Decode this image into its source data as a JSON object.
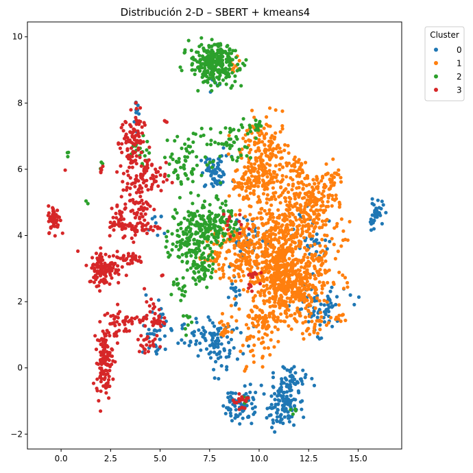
{
  "chart_data": {
    "type": "scatter",
    "title": "Distribución 2-D – SBERT + kmeans4",
    "xlabel": "",
    "ylabel": "",
    "xlim": [
      -1.7,
      17.2
    ],
    "ylim": [
      -2.45,
      10.45
    ],
    "x_ticks": [
      0.0,
      2.5,
      5.0,
      7.5,
      10.0,
      12.5,
      15.0
    ],
    "x_tick_labels": [
      "0.0",
      "2.5",
      "5.0",
      "7.5",
      "10.0",
      "12.5",
      "15.0"
    ],
    "y_ticks": [
      -2,
      0,
      2,
      4,
      6,
      8,
      10
    ],
    "y_tick_labels": [
      "−2",
      "0",
      "2",
      "4",
      "6",
      "8",
      "10"
    ],
    "grid": false,
    "legend": {
      "title": "Cluster",
      "placement": "outside-top-right"
    },
    "series": [
      {
        "name": "0",
        "color": "#1f77b4",
        "clusters": [
          {
            "cx": 7.8,
            "cy": 5.9,
            "sx": 0.4,
            "sy": 0.25,
            "n": 60
          },
          {
            "cx": 7.6,
            "cy": 0.9,
            "sx": 0.8,
            "sy": 0.3,
            "n": 80
          },
          {
            "cx": 8.0,
            "cy": 0.5,
            "sx": 0.25,
            "sy": 0.4,
            "n": 25
          },
          {
            "cx": 9.0,
            "cy": -1.1,
            "sx": 0.4,
            "sy": 0.3,
            "n": 70
          },
          {
            "cx": 11.2,
            "cy": -1.1,
            "sx": 0.4,
            "sy": 0.35,
            "n": 120
          },
          {
            "cx": 11.7,
            "cy": -0.3,
            "sx": 0.4,
            "sy": 0.2,
            "n": 35
          },
          {
            "cx": 13.0,
            "cy": 1.8,
            "sx": 0.7,
            "sy": 0.35,
            "n": 70
          },
          {
            "cx": 15.9,
            "cy": 4.65,
            "sx": 0.2,
            "sy": 0.2,
            "n": 40
          },
          {
            "cx": 4.8,
            "cy": 1.1,
            "sx": 0.3,
            "sy": 0.5,
            "n": 35
          },
          {
            "cx": 9.6,
            "cy": 3.9,
            "sx": 0.5,
            "sy": 0.3,
            "n": 40
          },
          {
            "cx": 12.8,
            "cy": 3.8,
            "sx": 0.5,
            "sy": 0.5,
            "n": 35
          },
          {
            "cx": 3.7,
            "cy": 7.6,
            "sx": 0.15,
            "sy": 0.2,
            "n": 10
          },
          {
            "cx": 8.8,
            "cy": 2.2,
            "sx": 0.2,
            "sy": 0.3,
            "n": 15
          },
          {
            "cx": 7.7,
            "cy": 8.6,
            "sx": 0.15,
            "sy": 0.15,
            "n": 8
          },
          {
            "cx": 4.8,
            "cy": 4.3,
            "sx": 0.2,
            "sy": 0.2,
            "n": 8
          }
        ]
      },
      {
        "name": "1",
        "color": "#ff7f0e",
        "clusters": [
          {
            "cx": 10.9,
            "cy": 3.5,
            "sx": 0.9,
            "sy": 0.8,
            "n": 500
          },
          {
            "cx": 11.6,
            "cy": 2.4,
            "sx": 0.8,
            "sy": 0.5,
            "n": 350
          },
          {
            "cx": 10.3,
            "cy": 6.3,
            "sx": 0.6,
            "sy": 0.6,
            "n": 220
          },
          {
            "cx": 12.4,
            "cy": 5.0,
            "sx": 0.8,
            "sy": 0.5,
            "n": 220
          },
          {
            "cx": 9.2,
            "cy": 5.6,
            "sx": 0.4,
            "sy": 0.3,
            "n": 50
          },
          {
            "cx": 8.9,
            "cy": 3.5,
            "sx": 0.5,
            "sy": 0.5,
            "n": 100
          },
          {
            "cx": 10.3,
            "cy": 1.4,
            "sx": 0.4,
            "sy": 0.4,
            "n": 60
          },
          {
            "cx": 9.7,
            "cy": 0.5,
            "sx": 0.3,
            "sy": 0.4,
            "n": 25
          },
          {
            "cx": 13.3,
            "cy": 3.3,
            "sx": 0.5,
            "sy": 0.5,
            "n": 60
          },
          {
            "cx": 13.6,
            "cy": 5.6,
            "sx": 0.3,
            "sy": 0.3,
            "n": 40
          },
          {
            "cx": 8.3,
            "cy": 1.2,
            "sx": 0.2,
            "sy": 0.25,
            "n": 20
          },
          {
            "cx": 14.1,
            "cy": 1.5,
            "sx": 0.2,
            "sy": 0.1,
            "n": 10
          },
          {
            "cx": 11.9,
            "cy": 6.1,
            "sx": 0.2,
            "sy": 0.15,
            "n": 20
          },
          {
            "cx": 8.7,
            "cy": 9.1,
            "sx": 0.15,
            "sy": 0.2,
            "n": 10
          },
          {
            "cx": 7.7,
            "cy": 3.4,
            "sx": 0.4,
            "sy": 0.3,
            "n": 35
          },
          {
            "cx": 12.7,
            "cy": 1.2,
            "sx": 0.3,
            "sy": 0.2,
            "n": 20
          }
        ]
      },
      {
        "name": "2",
        "color": "#2ca02c",
        "clusters": [
          {
            "cx": 7.7,
            "cy": 9.2,
            "sx": 0.6,
            "sy": 0.3,
            "n": 280
          },
          {
            "cx": 6.7,
            "cy": 4.0,
            "sx": 0.6,
            "sy": 0.5,
            "n": 180
          },
          {
            "cx": 7.9,
            "cy": 4.4,
            "sx": 0.5,
            "sy": 0.3,
            "n": 100
          },
          {
            "cx": 6.4,
            "cy": 6.2,
            "sx": 0.7,
            "sy": 0.35,
            "n": 60
          },
          {
            "cx": 8.6,
            "cy": 6.8,
            "sx": 0.5,
            "sy": 0.35,
            "n": 40
          },
          {
            "cx": 9.9,
            "cy": 7.3,
            "sx": 0.2,
            "sy": 0.15,
            "n": 15
          },
          {
            "cx": 7.2,
            "cy": 2.9,
            "sx": 0.3,
            "sy": 0.2,
            "n": 40
          },
          {
            "cx": 6.0,
            "cy": 2.4,
            "sx": 0.2,
            "sy": 0.2,
            "n": 15
          },
          {
            "cx": 6.4,
            "cy": 1.3,
            "sx": 0.2,
            "sy": 0.15,
            "n": 8
          },
          {
            "cx": 7.3,
            "cy": 7.0,
            "sx": 0.4,
            "sy": 0.2,
            "n": 10
          },
          {
            "cx": 4.0,
            "cy": 6.5,
            "sx": 0.3,
            "sy": 0.3,
            "n": 15
          },
          {
            "cx": 0.3,
            "cy": 6.4,
            "sx": 0.05,
            "sy": 0.05,
            "n": 3
          },
          {
            "cx": 2.0,
            "cy": 6.1,
            "sx": 0.1,
            "sy": 0.1,
            "n": 3
          },
          {
            "cx": 9.3,
            "cy": -1.0,
            "sx": 0.1,
            "sy": 0.1,
            "n": 5
          },
          {
            "cx": 11.8,
            "cy": -1.2,
            "sx": 0.1,
            "sy": 0.1,
            "n": 4
          },
          {
            "cx": 1.3,
            "cy": 5.0,
            "sx": 0.05,
            "sy": 0.05,
            "n": 2
          }
        ]
      },
      {
        "name": "3",
        "color": "#d62728",
        "clusters": [
          {
            "cx": 3.6,
            "cy": 6.8,
            "sx": 0.3,
            "sy": 0.5,
            "n": 100
          },
          {
            "cx": 4.3,
            "cy": 5.7,
            "sx": 0.5,
            "sy": 0.25,
            "n": 60
          },
          {
            "cx": 3.8,
            "cy": 5.0,
            "sx": 0.4,
            "sy": 0.5,
            "n": 70
          },
          {
            "cx": 4.0,
            "cy": 4.25,
            "sx": 0.5,
            "sy": 0.1,
            "n": 40
          },
          {
            "cx": 2.8,
            "cy": 4.5,
            "sx": 0.3,
            "sy": 0.3,
            "n": 30
          },
          {
            "cx": -0.35,
            "cy": 4.5,
            "sx": 0.15,
            "sy": 0.2,
            "n": 55
          },
          {
            "cx": 2.2,
            "cy": 3.0,
            "sx": 0.4,
            "sy": 0.25,
            "n": 110
          },
          {
            "cx": 3.4,
            "cy": 3.3,
            "sx": 0.4,
            "sy": 0.1,
            "n": 30
          },
          {
            "cx": 2.2,
            "cy": 0.2,
            "sx": 0.2,
            "sy": 0.5,
            "n": 120
          },
          {
            "cx": 2.7,
            "cy": 1.3,
            "sx": 0.3,
            "sy": 0.3,
            "n": 30
          },
          {
            "cx": 3.5,
            "cy": 1.45,
            "sx": 0.35,
            "sy": 0.05,
            "n": 20
          },
          {
            "cx": 4.7,
            "cy": 1.5,
            "sx": 0.25,
            "sy": 0.25,
            "n": 35
          },
          {
            "cx": 4.3,
            "cy": 0.7,
            "sx": 0.25,
            "sy": 0.15,
            "n": 20
          },
          {
            "cx": 2.0,
            "cy": 6.0,
            "sx": 0.1,
            "sy": 0.1,
            "n": 5
          },
          {
            "cx": 5.3,
            "cy": 7.4,
            "sx": 0.05,
            "sy": 0.05,
            "n": 4
          },
          {
            "cx": 9.1,
            "cy": -1.0,
            "sx": 0.2,
            "sy": 0.2,
            "n": 18
          },
          {
            "cx": 9.6,
            "cy": 2.8,
            "sx": 0.2,
            "sy": 0.1,
            "n": 12
          },
          {
            "cx": 8.5,
            "cy": 4.4,
            "sx": 0.3,
            "sy": 0.2,
            "n": 12
          },
          {
            "cx": 0.2,
            "cy": 6.0,
            "sx": 0.02,
            "sy": 0.02,
            "n": 1
          },
          {
            "cx": 5.1,
            "cy": 2.75,
            "sx": 0.05,
            "sy": 0.05,
            "n": 2
          },
          {
            "cx": 9.5,
            "cy": 2.4,
            "sx": 0.1,
            "sy": 0.1,
            "n": 4
          }
        ]
      }
    ]
  }
}
